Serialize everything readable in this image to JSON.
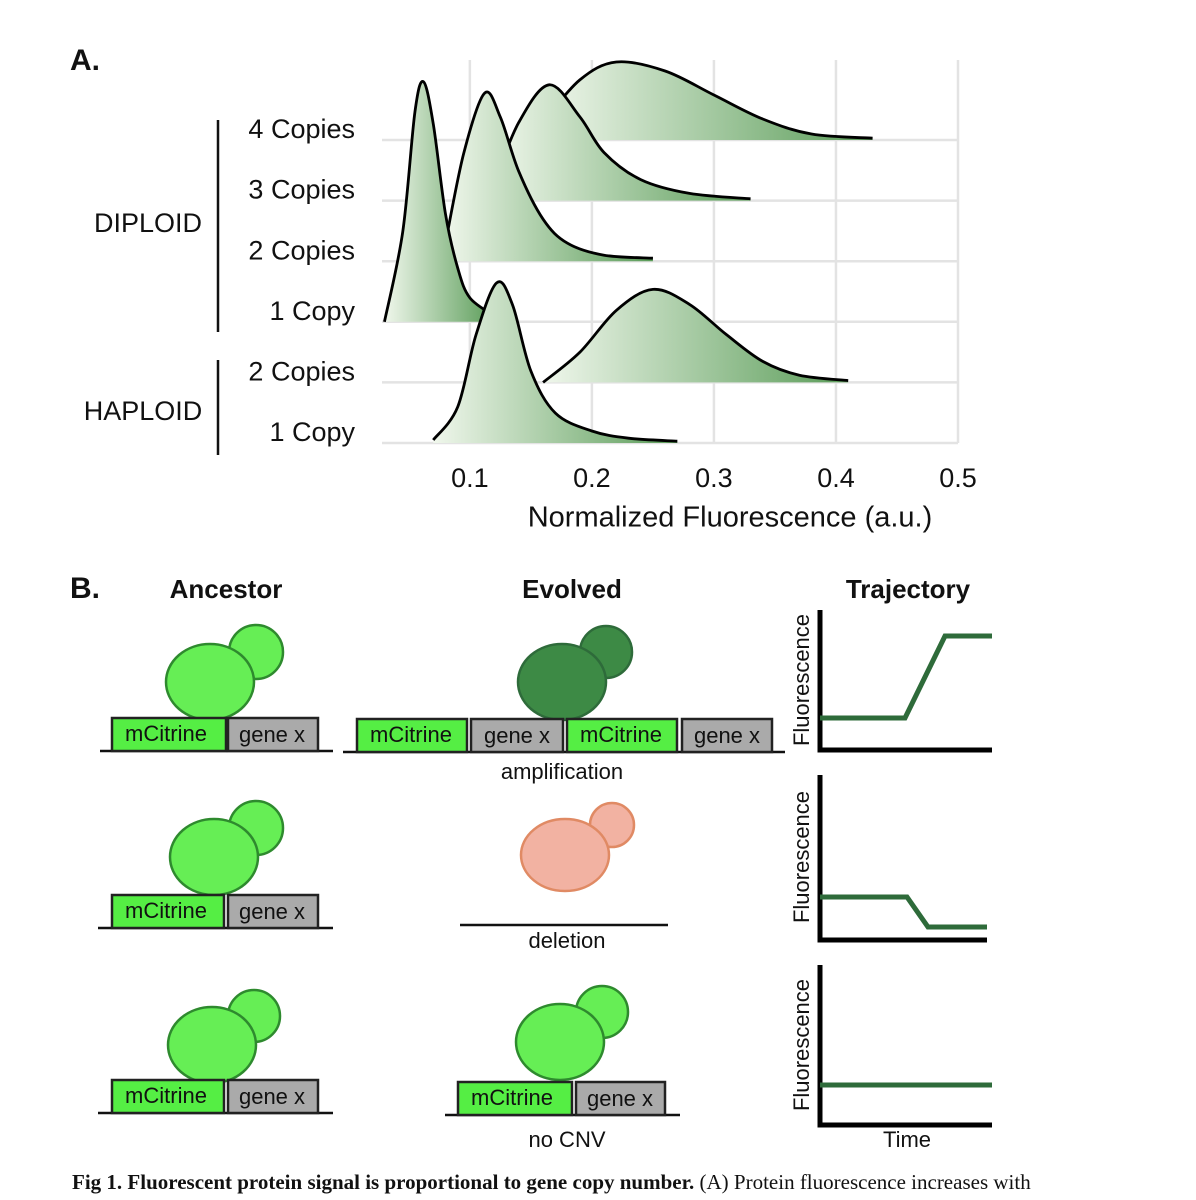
{
  "panel_labels": [
    "A.",
    "B."
  ],
  "chart_data": {
    "type": "ridgeline",
    "x_label": "Normalized Fluorescence (a.u.)",
    "groups": [
      "DIPLOID",
      "HAPLOID"
    ],
    "categories": [
      "4 Copies",
      "3 Copies",
      "2 Copies",
      "1 Copy",
      "2 Copies",
      "1 Copy"
    ],
    "xlim": [
      0.028,
      0.5
    ],
    "xticks": [
      0.1,
      0.2,
      0.3,
      0.4,
      0.5
    ],
    "grid": true,
    "gradient": [
      "#f0f7ec",
      "#5a9c58"
    ],
    "series": [
      {
        "x": [
          0.16,
          0.19,
          0.22,
          0.26,
          0.3,
          0.34,
          0.38,
          0.43
        ],
        "values": [
          0.3,
          1.0,
          1.3,
          1.15,
          0.75,
          0.35,
          0.1,
          0.03
        ]
      },
      {
        "x": [
          0.12,
          0.14,
          0.165,
          0.19,
          0.21,
          0.24,
          0.28,
          0.33
        ],
        "values": [
          0.3,
          1.3,
          1.93,
          1.4,
          0.8,
          0.35,
          0.12,
          0.03
        ]
      },
      {
        "x": [
          0.08,
          0.095,
          0.112,
          0.125,
          0.14,
          0.16,
          0.18,
          0.21,
          0.25
        ],
        "values": [
          0.3,
          1.8,
          2.8,
          2.4,
          1.5,
          0.7,
          0.3,
          0.1,
          0.05
        ]
      },
      {
        "x": [
          0.03,
          0.045,
          0.055,
          0.062,
          0.07,
          0.08,
          0.09,
          0.1,
          0.12
        ],
        "values": [
          0,
          1.5,
          3.5,
          4.0,
          3.3,
          1.8,
          0.9,
          0.4,
          0.1
        ]
      },
      {
        "x": [
          0.16,
          0.19,
          0.22,
          0.25,
          0.28,
          0.31,
          0.34,
          0.37,
          0.41
        ],
        "values": [
          0,
          0.5,
          1.2,
          1.55,
          1.3,
          0.8,
          0.35,
          0.12,
          0.03
        ]
      },
      {
        "x": [
          0.07,
          0.09,
          0.105,
          0.122,
          0.135,
          0.15,
          0.17,
          0.2,
          0.23,
          0.27
        ],
        "values": [
          0.05,
          0.6,
          1.8,
          2.67,
          2.3,
          1.2,
          0.5,
          0.2,
          0.08,
          0.03
        ]
      }
    ]
  },
  "panel_b": {
    "headers": [
      "Ancestor",
      "Evolved",
      "Trajectory"
    ],
    "gene_labels": [
      "mCitrine",
      "gene x"
    ],
    "outcomes": [
      "amplification",
      "deletion",
      "no CNV"
    ],
    "y_label": "Fluorescence",
    "x_label": "Time"
  },
  "caption": {
    "title": "Fig 1.  Fluorescent protein signal is proportional to gene copy number.",
    "text": "(A) Protein fluorescence increases with"
  }
}
